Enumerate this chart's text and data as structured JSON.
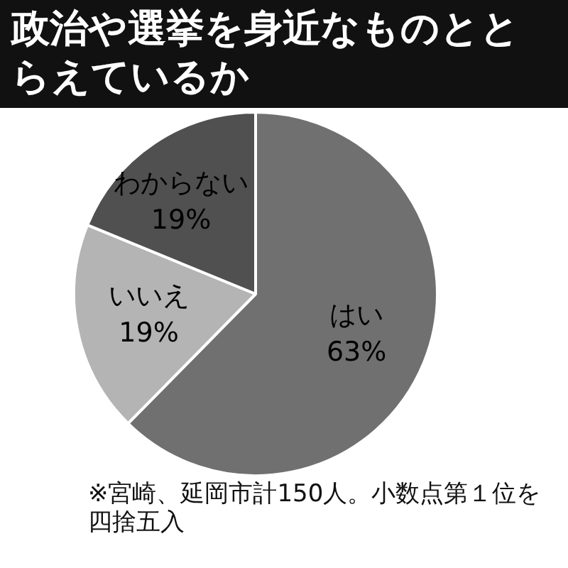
{
  "chart_data": {
    "type": "pie",
    "title": "政治や選挙を身近なものととらえているか",
    "categories": [
      "はい",
      "いいえ",
      "わからない"
    ],
    "values": [
      63,
      19,
      19
    ],
    "value_labels": [
      "63%",
      "19%",
      "19%"
    ],
    "colors": [
      "#707070",
      "#b4b4b4",
      "#505050"
    ],
    "annotations": [
      "※宮崎、延岡市計150人。小数点第１位を四捨五入"
    ],
    "legend": false
  }
}
